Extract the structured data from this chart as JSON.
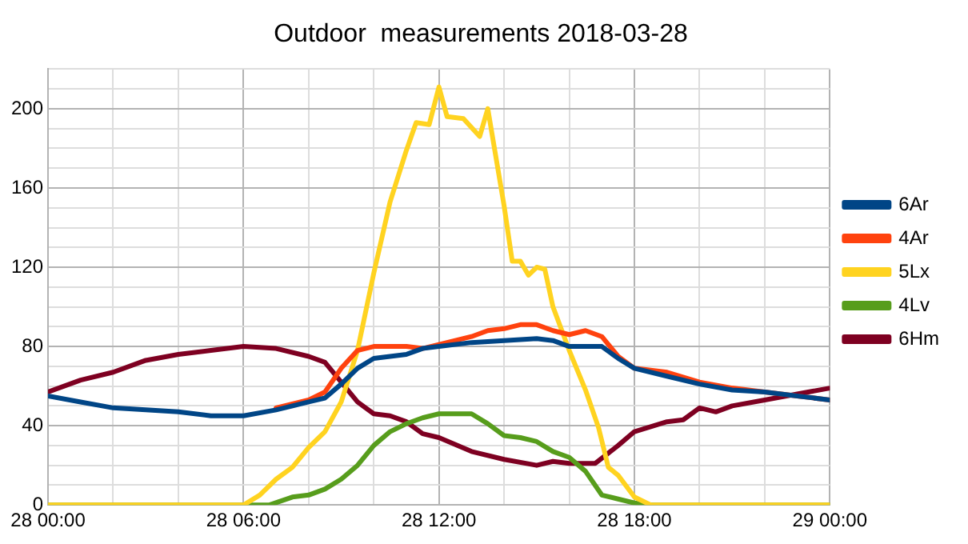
{
  "chart_data": {
    "type": "line",
    "title": "Outdoor  measurements 2018-03-28",
    "xlim": [
      "2018-03-28T00:00",
      "2018-03-29T00:00"
    ],
    "xticks": [
      {
        "value": "2018-03-28T00:00",
        "label": "28 00:00"
      },
      {
        "value": "2018-03-28T02:00",
        "label": null
      },
      {
        "value": "2018-03-28T04:00",
        "label": null
      },
      {
        "value": "2018-03-28T06:00",
        "label": "28 06:00"
      },
      {
        "value": "2018-03-28T08:00",
        "label": null
      },
      {
        "value": "2018-03-28T10:00",
        "label": null
      },
      {
        "value": "2018-03-28T12:00",
        "label": "28 12:00"
      },
      {
        "value": "2018-03-28T14:00",
        "label": null
      },
      {
        "value": "2018-03-28T16:00",
        "label": null
      },
      {
        "value": "2018-03-28T18:00",
        "label": "28 18:00"
      },
      {
        "value": "2018-03-28T20:00",
        "label": null
      },
      {
        "value": "2018-03-28T22:00",
        "label": null
      },
      {
        "value": "2018-03-29T00:00",
        "label": "29 00:00"
      }
    ],
    "ylim": [
      0,
      220
    ],
    "yticks": [
      0,
      {
        "value": 10,
        "label": null
      },
      {
        "value": 20,
        "label": null
      },
      {
        "value": 30,
        "label": null
      },
      40,
      {
        "value": 50,
        "label": null
      },
      {
        "value": 60,
        "label": null
      },
      {
        "value": 70,
        "label": null
      },
      80,
      {
        "value": 90,
        "label": null
      },
      {
        "value": 100,
        "label": null
      },
      {
        "value": 110,
        "label": null
      },
      120,
      {
        "value": 130,
        "label": null
      },
      {
        "value": 140,
        "label": null
      },
      {
        "value": 150,
        "label": null
      },
      160,
      {
        "value": 170,
        "label": null
      },
      {
        "value": 180,
        "label": null
      },
      {
        "value": 190,
        "label": null
      },
      200,
      {
        "value": 210,
        "label": null
      },
      {
        "value": 220,
        "label": null
      }
    ],
    "grid": true,
    "legend": "right",
    "marker": "none",
    "line_style": "solid",
    "series": [
      {
        "name": "6Ar",
        "color": "#004586",
        "x": [
          "2018-03-28T00:00",
          "2018-03-28T01:00",
          "2018-03-28T02:00",
          "2018-03-28T03:00",
          "2018-03-28T04:00",
          "2018-03-28T05:00",
          "2018-03-28T06:00",
          "2018-03-28T07:00",
          "2018-03-28T08:00",
          "2018-03-28T08:30",
          "2018-03-28T09:00",
          "2018-03-28T09:30",
          "2018-03-28T10:00",
          "2018-03-28T11:00",
          "2018-03-28T11:30",
          "2018-03-28T12:00",
          "2018-03-28T13:00",
          "2018-03-28T14:00",
          "2018-03-28T15:00",
          "2018-03-28T15:30",
          "2018-03-28T16:00",
          "2018-03-28T17:00",
          "2018-03-28T17:30",
          "2018-03-28T18:00",
          "2018-03-28T19:00",
          "2018-03-28T20:00",
          "2018-03-28T21:00",
          "2018-03-28T22:00",
          "2018-03-28T23:00",
          "2018-03-29T00:00"
        ],
        "values": [
          55,
          52,
          49,
          48,
          47,
          45,
          45,
          48,
          52,
          54,
          61,
          69,
          74,
          76,
          79,
          80,
          82,
          83,
          84,
          83,
          80,
          80,
          74,
          69,
          65,
          61,
          58,
          57,
          55,
          53
        ]
      },
      {
        "name": "4Ar",
        "color": "#ff420e",
        "x": [
          "2018-03-28T07:00",
          "2018-03-28T08:00",
          "2018-03-28T08:30",
          "2018-03-28T09:00",
          "2018-03-28T09:30",
          "2018-03-28T10:00",
          "2018-03-28T11:00",
          "2018-03-28T11:30",
          "2018-03-28T12:00",
          "2018-03-28T13:00",
          "2018-03-28T13:30",
          "2018-03-28T14:00",
          "2018-03-28T14:30",
          "2018-03-28T15:00",
          "2018-03-28T15:30",
          "2018-03-28T16:00",
          "2018-03-28T16:30",
          "2018-03-28T17:00",
          "2018-03-28T17:30",
          "2018-03-28T18:00",
          "2018-03-28T19:00",
          "2018-03-28T20:00",
          "2018-03-28T21:00",
          "2018-03-28T22:00",
          "2018-03-28T23:00",
          "2018-03-29T00:00"
        ],
        "values": [
          49,
          53,
          57,
          69,
          78,
          80,
          80,
          79,
          81,
          85,
          88,
          89,
          91,
          91,
          88,
          86,
          88,
          85,
          75,
          69,
          67,
          62,
          59,
          57,
          55,
          53
        ]
      },
      {
        "name": "5Lx",
        "color": "#ffd320",
        "x": [
          "2018-03-28T00:00",
          "2018-03-28T06:00",
          "2018-03-28T06:30",
          "2018-03-28T07:00",
          "2018-03-28T07:30",
          "2018-03-28T08:00",
          "2018-03-28T08:30",
          "2018-03-28T09:00",
          "2018-03-28T09:30",
          "2018-03-28T10:00",
          "2018-03-28T10:30",
          "2018-03-28T11:00",
          "2018-03-28T11:18",
          "2018-03-28T11:42",
          "2018-03-28T12:00",
          "2018-03-28T12:15",
          "2018-03-28T12:45",
          "2018-03-28T13:15",
          "2018-03-28T13:30",
          "2018-03-28T14:00",
          "2018-03-28T14:15",
          "2018-03-28T14:30",
          "2018-03-28T14:45",
          "2018-03-28T15:00",
          "2018-03-28T15:15",
          "2018-03-28T15:30",
          "2018-03-28T16:00",
          "2018-03-28T16:30",
          "2018-03-28T16:54",
          "2018-03-28T17:12",
          "2018-03-28T17:30",
          "2018-03-28T18:00",
          "2018-03-28T18:30",
          "2018-03-29T00:00"
        ],
        "values": [
          0,
          0,
          5,
          13,
          19,
          29,
          37,
          52,
          78,
          117,
          153,
          179,
          193,
          192,
          211,
          196,
          195,
          186,
          200,
          151,
          123,
          123,
          116,
          120,
          119,
          100,
          78,
          58,
          39,
          19,
          15,
          4,
          0,
          0
        ]
      },
      {
        "name": "4Lv",
        "color": "#579d1c",
        "x": [
          "2018-03-28T00:00",
          "2018-03-28T06:48",
          "2018-03-28T07:30",
          "2018-03-28T08:00",
          "2018-03-28T08:30",
          "2018-03-28T09:00",
          "2018-03-28T09:30",
          "2018-03-28T10:00",
          "2018-03-28T10:30",
          "2018-03-28T11:00",
          "2018-03-28T11:30",
          "2018-03-28T12:00",
          "2018-03-28T12:30",
          "2018-03-28T13:00",
          "2018-03-28T13:30",
          "2018-03-28T14:00",
          "2018-03-28T14:30",
          "2018-03-28T15:00",
          "2018-03-28T15:30",
          "2018-03-28T16:00",
          "2018-03-28T16:30",
          "2018-03-28T17:00",
          "2018-03-28T17:30",
          "2018-03-28T18:00",
          "2018-03-28T18:30",
          "2018-03-29T00:00"
        ],
        "values": [
          0,
          0,
          4,
          5,
          8,
          13,
          20,
          30,
          37,
          41,
          44,
          46,
          46,
          46,
          41,
          35,
          34,
          32,
          27,
          24,
          17,
          5,
          3,
          1,
          0,
          0
        ]
      },
      {
        "name": "6Hm",
        "color": "#7e0021",
        "x": [
          "2018-03-28T00:00",
          "2018-03-28T01:00",
          "2018-03-28T02:00",
          "2018-03-28T03:00",
          "2018-03-28T04:00",
          "2018-03-28T05:00",
          "2018-03-28T06:00",
          "2018-03-28T07:00",
          "2018-03-28T08:00",
          "2018-03-28T08:30",
          "2018-03-28T09:00",
          "2018-03-28T09:30",
          "2018-03-28T10:00",
          "2018-03-28T10:30",
          "2018-03-28T11:00",
          "2018-03-28T11:30",
          "2018-03-28T12:00",
          "2018-03-28T13:00",
          "2018-03-28T14:00",
          "2018-03-28T15:00",
          "2018-03-28T15:30",
          "2018-03-28T16:00",
          "2018-03-28T16:48",
          "2018-03-28T17:30",
          "2018-03-28T18:00",
          "2018-03-28T19:00",
          "2018-03-28T19:30",
          "2018-03-28T20:00",
          "2018-03-28T20:30",
          "2018-03-28T21:00",
          "2018-03-28T22:00",
          "2018-03-28T23:00",
          "2018-03-29T00:00"
        ],
        "values": [
          57,
          63,
          67,
          73,
          76,
          78,
          80,
          79,
          75,
          72,
          62,
          52,
          46,
          45,
          42,
          36,
          34,
          27,
          23,
          20,
          22,
          21,
          21,
          30,
          37,
          42,
          43,
          49,
          47,
          50,
          53,
          56,
          59
        ]
      }
    ]
  }
}
